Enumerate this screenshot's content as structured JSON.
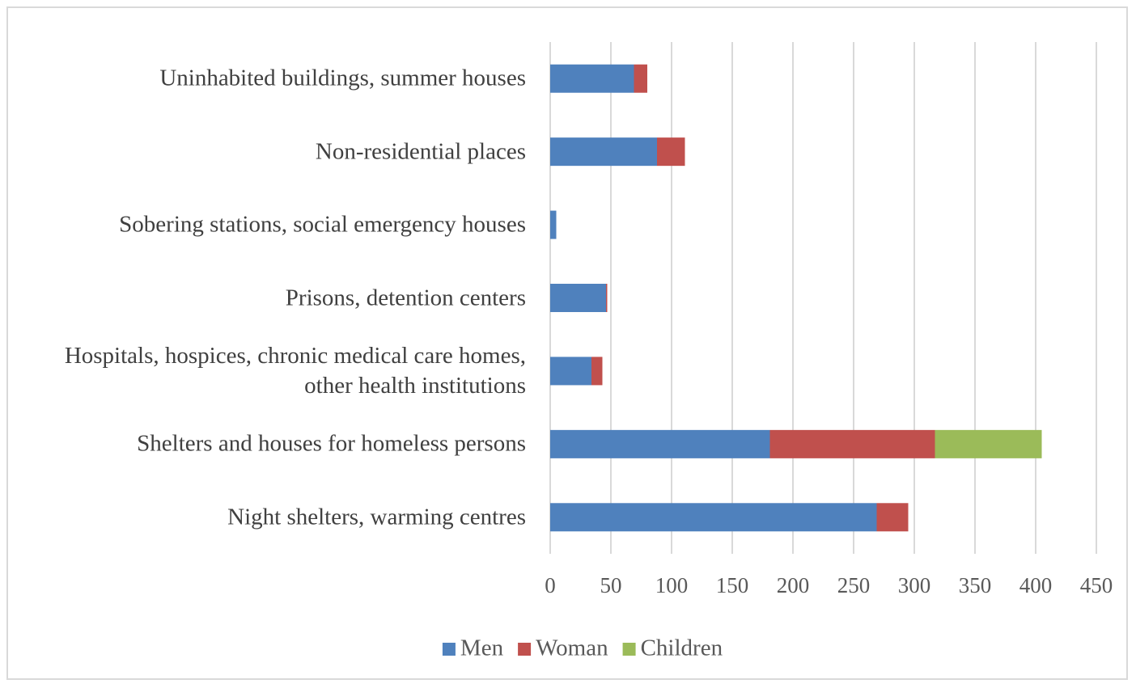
{
  "chart_data": {
    "type": "hbar-stacked",
    "categories": [
      "Uninhabited buildings, summer houses",
      "Non-residential places",
      "Sobering stations, social emergency houses",
      "Prisons, detention centers",
      "Hospitals, hospices, chronic medical care homes, other health institutions",
      "Shelters and houses for homeless persons",
      "Night shelters, warming centres"
    ],
    "series": [
      {
        "name": "Men",
        "color": "#4f81bd",
        "values": [
          69,
          88,
          5,
          46,
          34,
          181,
          269
        ]
      },
      {
        "name": "Woman",
        "color": "#c0504d",
        "values": [
          11,
          23,
          0,
          1,
          9,
          136,
          26
        ]
      },
      {
        "name": "Children",
        "color": "#9bbb59",
        "values": [
          0,
          0,
          0,
          0,
          0,
          88,
          0
        ]
      }
    ],
    "xlim": [
      0,
      450
    ],
    "xticks": [
      0,
      50,
      100,
      150,
      200,
      250,
      300,
      350,
      400,
      450
    ],
    "grid": true,
    "legend": "bottom"
  }
}
